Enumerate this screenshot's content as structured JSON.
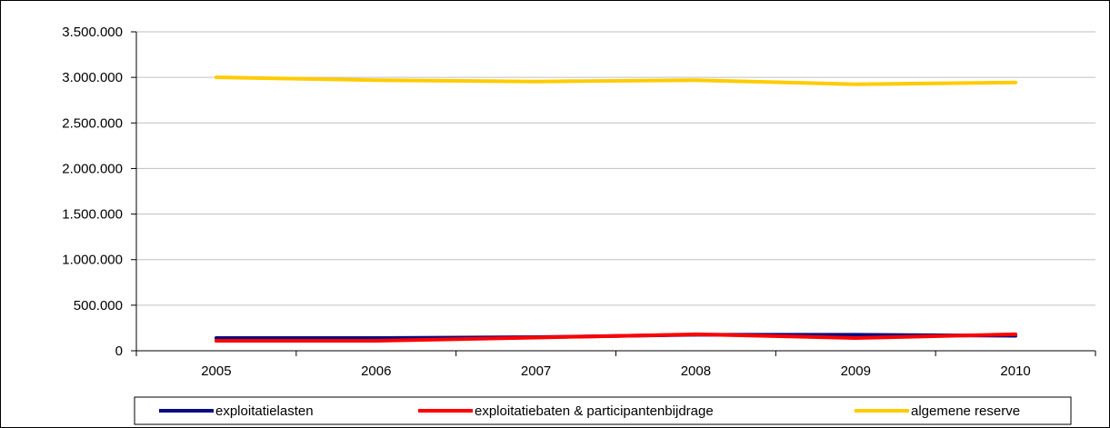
{
  "chart_data": {
    "type": "line",
    "title": "",
    "xlabel": "",
    "ylabel": "",
    "categories": [
      "2005",
      "2006",
      "2007",
      "2008",
      "2009",
      "2010"
    ],
    "ylim": [
      0,
      3500000
    ],
    "yticks": [
      0,
      500000,
      1000000,
      1500000,
      2000000,
      2500000,
      3000000,
      3500000
    ],
    "ytick_labels": [
      "0",
      "500.000",
      "1.000.000",
      "1.500.000",
      "2.000.000",
      "2.500.000",
      "3.000.000",
      "3.500.000"
    ],
    "grid": true,
    "legend_position": "bottom",
    "series": [
      {
        "name": "exploitatielasten",
        "color": "#0a0a80",
        "values": [
          140000,
          140000,
          150000,
          175000,
          175000,
          165000
        ]
      },
      {
        "name": "exploitatiebaten & participantenbijdrage",
        "color": "#ff0000",
        "values": [
          110000,
          110000,
          145000,
          180000,
          140000,
          180000
        ]
      },
      {
        "name": "algemene reserve",
        "color": "#ffcc00",
        "values": [
          3000000,
          2970000,
          2955000,
          2970000,
          2925000,
          2945000
        ]
      }
    ]
  }
}
